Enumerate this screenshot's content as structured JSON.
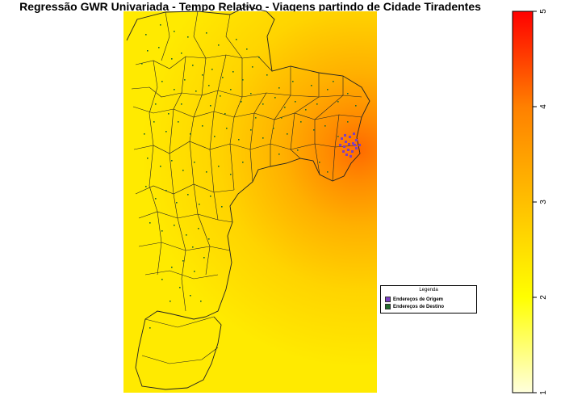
{
  "title": "Regressão GWR Univariada - Tempo Relativo - Viagens partindo de Cidade Tiradentes",
  "legend": {
    "title": "Legenda",
    "items": [
      {
        "label": "Endereços de Origem",
        "color": "#7b3fc4"
      },
      {
        "label": "Endereços de Destino",
        "color": "#1f6b2a"
      }
    ]
  },
  "color_scale": {
    "min": 1,
    "max": 5,
    "ticks": [
      "1",
      "2",
      "3",
      "4",
      "5"
    ],
    "colors": [
      "#ffffdd",
      "#ffff00",
      "#ff9900",
      "#ff0000"
    ]
  }
}
